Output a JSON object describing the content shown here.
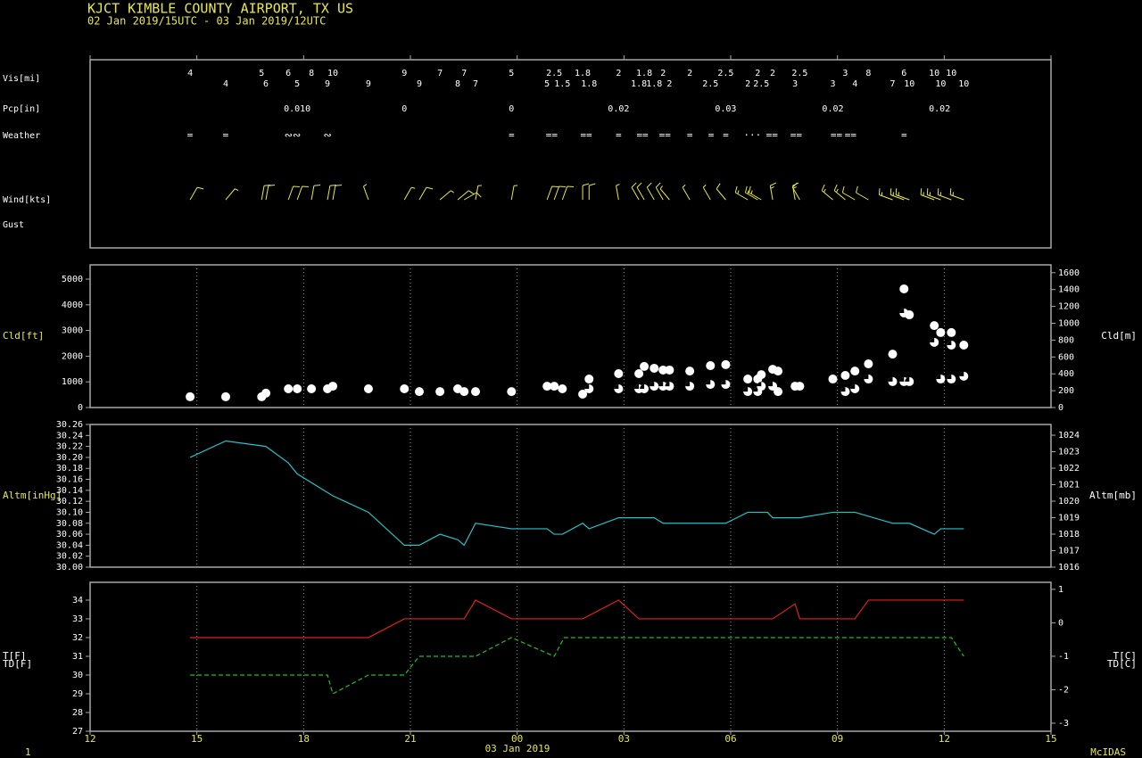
{
  "header": {
    "title": "KJCT  KIMBLE COUNTY AIRPORT, TX US",
    "subtitle": "02 Jan 2019/15UTC - 03 Jan 2019/12UTC",
    "xlabel": "03 Jan 2019",
    "footer_left": "1",
    "footer_right": "McIDAS"
  },
  "chart_data": [
    {
      "type": "station",
      "xlim": [
        0,
        27
      ],
      "xticks": [
        0,
        3,
        6,
        9,
        12,
        15,
        18,
        21,
        24,
        27
      ],
      "row_labels": [
        "Vis[mi]",
        "Pcp[in]",
        "Weather",
        "Wind[kts]",
        "Gust"
      ],
      "vis": {
        "color": "#e8e84c",
        "x": [
          2.81,
          3.81,
          4.82,
          4.94,
          5.57,
          5.82,
          6.22,
          6.67,
          6.82,
          7.82,
          8.83,
          9.25,
          9.83,
          10.33,
          10.51,
          10.83,
          11.84,
          12.84,
          13.04,
          13.27,
          13.84,
          14.02,
          14.85,
          15.42,
          15.57,
          15.85,
          16.1,
          16.28,
          16.85,
          17.43,
          17.86,
          18.48,
          18.76,
          18.86,
          19.18,
          19.81,
          19.94,
          20.87,
          21.22,
          21.49,
          21.87,
          22.55,
          22.87,
          23.02,
          23.72,
          23.9,
          24.2,
          24.55
        ],
        "values": [
          4,
          4,
          5,
          6,
          6,
          5,
          8,
          9,
          10,
          9,
          9,
          9,
          7,
          8,
          7,
          7,
          5,
          5,
          2.5,
          1.5,
          1.8,
          1.8,
          2,
          1.8,
          1.8,
          1.8,
          2,
          2,
          2,
          2.5,
          2.5,
          2,
          2,
          2.5,
          2,
          3,
          2.5,
          3,
          3,
          4,
          8,
          7,
          6,
          10,
          10,
          10,
          10,
          10
        ]
      },
      "pcp": {
        "color": "#4ec94e",
        "x": [
          5.82,
          8.83,
          11.84,
          14.85,
          17.86,
          20.87,
          23.87
        ],
        "values": [
          0.01,
          0,
          0,
          0.02,
          0.03,
          0.02,
          0.02
        ],
        "value_labels": [
          "0.010",
          "0",
          "0",
          "0.02",
          "0.03",
          "0.02",
          "0.02"
        ]
      },
      "weather": {
        "color": "#e8e84c",
        "x": [
          2.81,
          3.81,
          5.69,
          6.67,
          11.84,
          12.97,
          13.94,
          14.85,
          15.52,
          16.15,
          16.85,
          17.45,
          17.86,
          18.61,
          19.16,
          19.84,
          20.97,
          21.37,
          22.87
        ],
        "symbols": [
          "=",
          "=",
          "∾∾",
          "∾",
          "=",
          "==",
          "==",
          "=",
          "==",
          "==",
          "=",
          "=",
          "=",
          "···",
          "==",
          "==",
          "==",
          "==",
          "="
        ]
      },
      "wind": {
        "color": "#e8e84c",
        "x": [
          2.81,
          3.81,
          4.82,
          4.94,
          5.57,
          5.82,
          6.22,
          6.67,
          6.82,
          7.82,
          8.83,
          9.25,
          9.83,
          10.33,
          10.51,
          10.83,
          11.84,
          12.84,
          13.04,
          13.27,
          13.84,
          14.02,
          14.85,
          15.42,
          15.57,
          15.85,
          16.1,
          16.28,
          16.85,
          17.43,
          17.86,
          18.48,
          18.76,
          18.86,
          19.18,
          19.81,
          19.94,
          20.87,
          21.22,
          21.49,
          21.87,
          22.55,
          22.87,
          23.02,
          23.72,
          23.9,
          24.2,
          24.55
        ],
        "direction": [
          30,
          40,
          10,
          10,
          20,
          20,
          10,
          10,
          10,
          340,
          30,
          30,
          50,
          50,
          60,
          10,
          10,
          20,
          20,
          20,
          0,
          0,
          350,
          330,
          330,
          330,
          330,
          320,
          330,
          330,
          320,
          300,
          300,
          300,
          350,
          350,
          330,
          310,
          310,
          300,
          300,
          290,
          290,
          290,
          290,
          290,
          290,
          290
        ],
        "speed": [
          10,
          5,
          10,
          10,
          10,
          10,
          10,
          10,
          10,
          5,
          5,
          10,
          5,
          10,
          10,
          5,
          5,
          10,
          10,
          10,
          10,
          10,
          5,
          10,
          10,
          10,
          10,
          5,
          5,
          5,
          10,
          15,
          15,
          15,
          15,
          15,
          10,
          15,
          15,
          10,
          10,
          15,
          15,
          15,
          15,
          15,
          15,
          15
        ]
      }
    },
    {
      "type": "scatter",
      "xlim": [
        0,
        27
      ],
      "xticks": [
        0,
        3,
        6,
        9,
        12,
        15,
        18,
        21,
        24,
        27
      ],
      "grid": true,
      "ylabel": "Cld[ft]",
      "y2label": "Cld[m]",
      "ylim": [
        0,
        5556
      ],
      "yticks": [
        0,
        1000,
        2000,
        3000,
        4000,
        5000
      ],
      "y2lim": [
        0,
        1693
      ],
      "y2ticks": [
        0,
        200,
        400,
        600,
        800,
        1000,
        1200,
        1400,
        1600
      ],
      "series": [
        {
          "color": "#ffffff",
          "x": [
            2.81,
            3.81,
            4.82,
            4.94,
            5.57,
            5.82,
            6.22,
            6.67,
            6.82,
            7.82,
            8.83,
            9.25,
            9.83,
            10.33,
            10.51,
            10.83,
            11.84,
            12.84,
            13.04,
            13.27,
            13.84,
            14.02,
            14.02,
            14.85,
            14.85,
            15.42,
            15.42,
            15.57,
            15.57,
            15.85,
            15.85,
            16.1,
            16.1,
            16.28,
            16.28,
            16.85,
            16.85,
            17.43,
            17.43,
            17.86,
            17.86,
            18.48,
            18.48,
            18.76,
            18.76,
            18.86,
            18.86,
            19.18,
            19.18,
            19.33,
            19.33,
            19.81,
            19.94,
            20.87,
            21.22,
            21.22,
            21.49,
            21.49,
            21.87,
            21.87,
            22.55,
            22.55,
            22.87,
            22.87,
            23.02,
            22.87,
            23.02,
            23.72,
            23.72,
            23.9,
            23.9,
            24.2,
            24.2,
            24.2,
            24.55,
            24.55
          ],
          "values": [
            420,
            420,
            420,
            560,
            730,
            730,
            730,
            730,
            830,
            730,
            730,
            620,
            620,
            730,
            620,
            620,
            620,
            830,
            830,
            730,
            520,
            1110,
            730,
            1320,
            730,
            1320,
            730,
            1600,
            730,
            1530,
            830,
            1460,
            830,
            1460,
            830,
            1420,
            830,
            1630,
            900,
            1670,
            900,
            1110,
            620,
            1110,
            620,
            1280,
            830,
            1490,
            830,
            1420,
            620,
            830,
            830,
            1110,
            1250,
            620,
            1420,
            730,
            1700,
            1110,
            2080,
            1010,
            4620,
            3680,
            3610,
            1010,
            1010,
            3190,
            2540,
            2920,
            1110,
            2920,
            2430,
            1110,
            2430,
            1220
          ],
          "cover": [
            "ovc",
            "ovc",
            "ovc",
            "ovc",
            "ovc",
            "ovc",
            "ovc",
            "ovc",
            "ovc",
            "ovc",
            "ovc",
            "ovc",
            "ovc",
            "ovc",
            "ovc",
            "ovc",
            "ovc",
            "ovc",
            "ovc",
            "ovc",
            "ovc",
            "ovc",
            "bkn",
            "ovc",
            "bkn",
            "ovc",
            "bkn",
            "ovc",
            "bkn",
            "ovc",
            "bkn",
            "ovc",
            "bkn",
            "ovc",
            "bkn",
            "ovc",
            "bkn",
            "ovc",
            "bkn",
            "ovc",
            "bkn",
            "ovc",
            "bkn",
            "ovc",
            "bkn",
            "ovc",
            "bkn",
            "ovc",
            "bkn",
            "ovc",
            "ovc",
            "ovc",
            "ovc",
            "ovc",
            "ovc",
            "bkn",
            "ovc",
            "bkn",
            "ovc",
            "bkn",
            "ovc",
            "bkn",
            "ovc",
            "bkn",
            "ovc",
            "bkn",
            "bkn",
            "ovc",
            "bkn",
            "ovc",
            "bkn",
            "ovc",
            "bkn",
            "bkn",
            "ovc",
            "bkn"
          ]
        }
      ]
    },
    {
      "type": "line",
      "xlim": [
        0,
        27
      ],
      "xticks": [
        0,
        3,
        6,
        9,
        12,
        15,
        18,
        21,
        24,
        27
      ],
      "grid": true,
      "ylabel": "Altm[inHg]",
      "y2label": "Altm[mb]",
      "ylim": [
        30.0,
        30.26
      ],
      "yticks": [
        {
          "value": 30,
          "label": "30.00"
        },
        30.02,
        30.04,
        30.06,
        30.08,
        {
          "value": 30.1,
          "label": "30.10"
        },
        30.12,
        30.14,
        30.16,
        30.18,
        {
          "value": 30.2,
          "label": "30.20"
        },
        30.22,
        30.24,
        30.26
      ],
      "y2lim": [
        1016,
        1024.65
      ],
      "y2ticks": [
        1016,
        1017,
        1018,
        1019,
        1020,
        1021,
        1022,
        1023,
        1024
      ],
      "series": [
        {
          "color": "#22c4c8",
          "x": [
            2.81,
            3.81,
            4.94,
            5.57,
            5.82,
            6.82,
            7.82,
            8.83,
            9.25,
            9.83,
            10.33,
            10.51,
            10.83,
            11.84,
            12.84,
            13.04,
            13.27,
            13.84,
            14.02,
            14.85,
            15.85,
            16.1,
            17.86,
            18.48,
            19.03,
            19.18,
            19.94,
            20.87,
            21.49,
            22.55,
            23.02,
            23.72,
            23.9,
            24.55
          ],
          "values": [
            30.2,
            30.23,
            30.22,
            30.19,
            30.17,
            30.13,
            30.1,
            30.04,
            30.04,
            30.06,
            30.05,
            30.04,
            30.08,
            30.07,
            30.07,
            30.06,
            30.06,
            30.08,
            30.07,
            30.09,
            30.09,
            30.08,
            30.08,
            30.1,
            30.1,
            30.09,
            30.09,
            30.1,
            30.1,
            30.08,
            30.08,
            30.06,
            30.07,
            30.07
          ]
        }
      ]
    },
    {
      "type": "line",
      "xlim": [
        0,
        27
      ],
      "grid": true,
      "xticks": [
        {
          "value": 0,
          "label": "12"
        },
        {
          "value": 3,
          "label": "15"
        },
        {
          "value": 6,
          "label": "18"
        },
        {
          "value": 9,
          "label": "21"
        },
        {
          "value": 12,
          "label": "00"
        },
        {
          "value": 15,
          "label": "03"
        },
        {
          "value": 18,
          "label": "06"
        },
        {
          "value": 21,
          "label": "09"
        },
        {
          "value": 24,
          "label": "12"
        },
        {
          "value": 27,
          "label": "15"
        }
      ],
      "ylabels": [
        "T[F]",
        "TD[F]"
      ],
      "y2labels": [
        "T[C]",
        "TD[C]"
      ],
      "ylim": [
        27,
        34.95
      ],
      "yticks": [
        27,
        28,
        29,
        30,
        31,
        32,
        33,
        34
      ],
      "y2lim": [
        -3.24,
        1.21
      ],
      "y2ticks": [
        -3,
        -2,
        -1,
        0,
        1
      ],
      "series": [
        {
          "color": "#e02020",
          "dashed": false,
          "x": [
            2.81,
            7.82,
            8.83,
            10.51,
            10.83,
            11.84,
            13.84,
            14.85,
            15.42,
            19.18,
            19.81,
            19.94,
            21.49,
            21.87,
            24.55
          ],
          "values": [
            32,
            32,
            33,
            33,
            34,
            33,
            33,
            34,
            33,
            33,
            33.8,
            33,
            33,
            34,
            34
          ]
        },
        {
          "color": "#22c022",
          "dashed": true,
          "x": [
            2.81,
            6.67,
            6.82,
            7.82,
            8.83,
            9.25,
            10.83,
            11.84,
            13.04,
            13.32,
            24.2,
            24.55
          ],
          "values": [
            30,
            30,
            29,
            30,
            30,
            31,
            31,
            32,
            31,
            32,
            32,
            31
          ]
        }
      ]
    }
  ]
}
